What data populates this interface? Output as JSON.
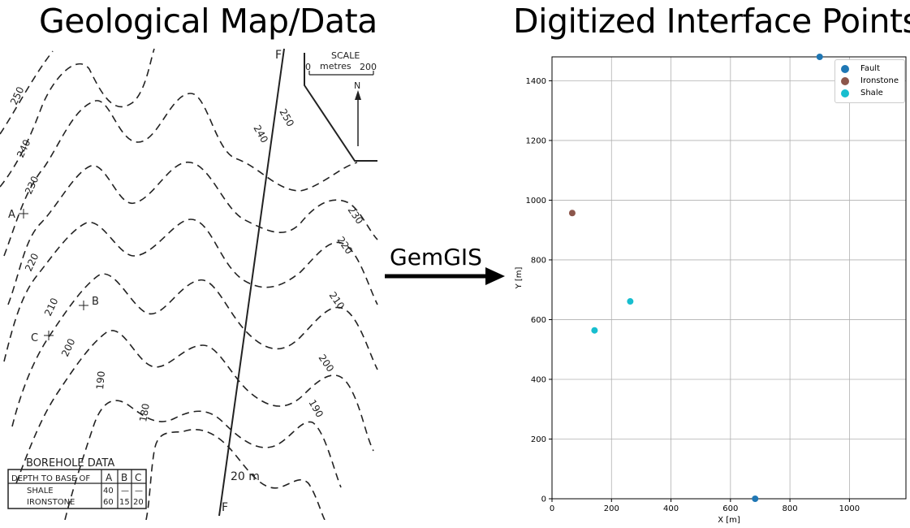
{
  "left_panel": {
    "title": "Geological Map/Data",
    "map": {
      "fault_labels": [
        "F",
        "F"
      ],
      "scale_label": "SCALE",
      "scale_unit": "metres",
      "scale_min": "0",
      "scale_max": "200",
      "north_label": "N",
      "contour_labels": [
        "250",
        "240",
        "230",
        "220",
        "210",
        "200",
        "190",
        "180",
        "240",
        "250",
        "230",
        "220",
        "210",
        "200",
        "190"
      ],
      "fault_throw_label": "20 m",
      "boreholes": [
        "A",
        "B",
        "C"
      ]
    },
    "borehole_table": {
      "title": "BOREHOLE DATA",
      "header": [
        "DEPTH TO BASE OF",
        "A",
        "B",
        "C"
      ],
      "rows": [
        [
          "SHALE",
          "40",
          "—",
          "—"
        ],
        [
          "IRONSTONE",
          "60",
          "15",
          "20"
        ]
      ]
    }
  },
  "arrow": {
    "label": "GemGIS"
  },
  "right_panel": {
    "title": "Digitized Interface Points"
  },
  "chart_data": {
    "type": "scatter",
    "title": "",
    "xlabel": "X [m]",
    "ylabel": "Y [m]",
    "xlim": [
      0,
      1190
    ],
    "ylim": [
      0,
      1480
    ],
    "xticks": [
      0,
      200,
      400,
      600,
      800,
      1000
    ],
    "yticks": [
      0,
      200,
      400,
      600,
      800,
      1000,
      1200,
      1400
    ],
    "grid": true,
    "legend_position": "top-right",
    "series": [
      {
        "name": "Fault",
        "color": "#1f77b4",
        "points": [
          [
            900,
            1480
          ],
          [
            683,
            0
          ]
        ]
      },
      {
        "name": "Ironstone",
        "color": "#8c564b",
        "points": [
          [
            68,
            957
          ]
        ]
      },
      {
        "name": "Shale",
        "color": "#17becf",
        "points": [
          [
            143,
            564
          ],
          [
            263,
            661
          ]
        ]
      }
    ]
  }
}
